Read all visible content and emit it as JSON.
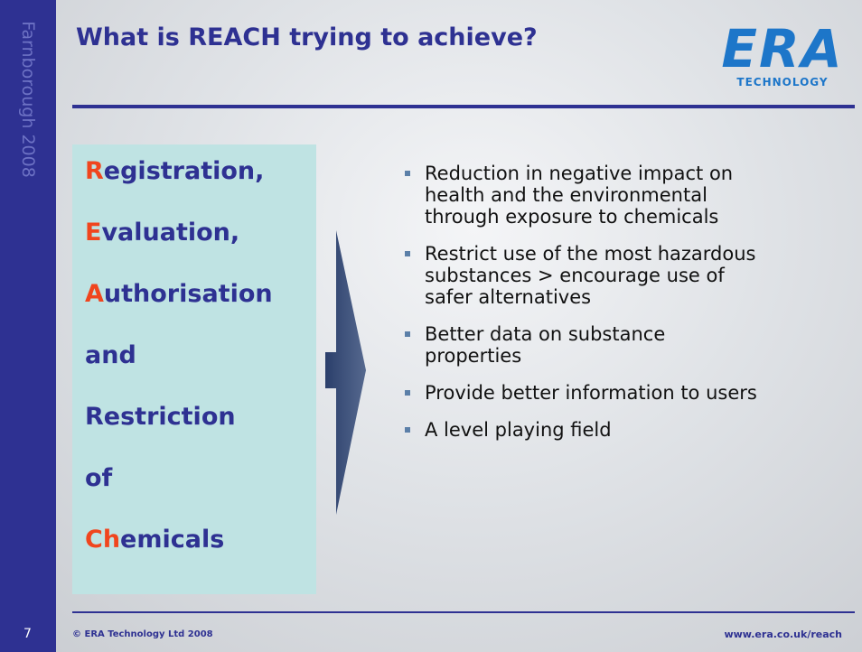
{
  "sidebar": "Farnborough 2008",
  "title": "What is REACH trying to achieve?",
  "logo": {
    "main": "ERA",
    "sub": "TECHNOLOGY"
  },
  "acronym": [
    {
      "lead": "R",
      "rest": "egistration,"
    },
    {
      "lead": "E",
      "rest": "valuation,"
    },
    {
      "lead": "A",
      "rest": "uthorisation"
    },
    {
      "rest": "and"
    },
    {
      "rest": "Restriction"
    },
    {
      "rest": "of"
    },
    {
      "lead": "Ch",
      "rest": "emicals"
    }
  ],
  "bullets": [
    [
      "Reduction in negative impact on",
      "health and the  environmental",
      "through exposure to chemicals"
    ],
    [
      "Restrict use of the most hazardous",
      "substances > encourage use of",
      "safer alternatives"
    ],
    [
      "Better data on substance",
      "properties"
    ],
    [
      "Provide better information to users"
    ],
    [
      "A level playing field"
    ]
  ],
  "footer": {
    "page": "7",
    "copyright": "© ERA Technology Ltd 2008",
    "url": "www.era.co.uk/reach"
  }
}
